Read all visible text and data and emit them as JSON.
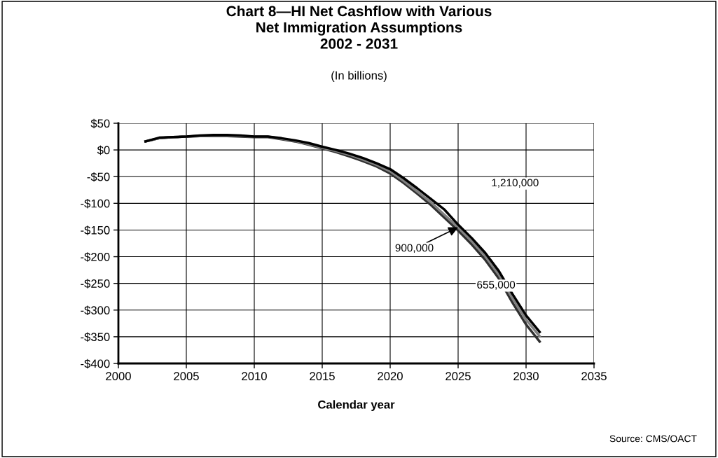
{
  "chart_data": {
    "type": "line",
    "title": "Chart 8—HI Net Cashflow with Various\nNet Immigration Assumptions\n2002 - 2031",
    "subtitle": "(In billions)",
    "xlabel": "Calendar year",
    "x": [
      2002,
      2003,
      2004,
      2005,
      2006,
      2007,
      2008,
      2009,
      2010,
      2011,
      2012,
      2013,
      2014,
      2015,
      2016,
      2017,
      2018,
      2019,
      2020,
      2021,
      2022,
      2023,
      2024,
      2025,
      2026,
      2027,
      2028,
      2029,
      2030,
      2031
    ],
    "series": [
      {
        "color": "#000000",
        "values": [
          16,
          23,
          24,
          25,
          27,
          28,
          28,
          27,
          25,
          25,
          22,
          18,
          13,
          6,
          0,
          -7,
          -15,
          -25,
          -36,
          -53,
          -72,
          -92,
          -112,
          -140,
          -165,
          -193,
          -227,
          -270,
          -310,
          -341
        ]
      },
      {
        "color": "#808080",
        "values": [
          16,
          22,
          24,
          25,
          26,
          27,
          27,
          26,
          25,
          25,
          21,
          17,
          11,
          4,
          -2,
          -9,
          -18,
          -28,
          -40,
          -58,
          -78,
          -98,
          -122,
          -145,
          -171,
          -199,
          -234,
          -278,
          -318,
          -349
        ]
      },
      {
        "color": "#303030",
        "values": [
          16,
          22,
          24,
          25,
          26,
          26,
          26,
          25,
          24,
          24,
          20,
          16,
          10,
          3,
          -4,
          -12,
          -21,
          -31,
          -44,
          -62,
          -82,
          -103,
          -127,
          -151,
          -177,
          -206,
          -241,
          -286,
          -327,
          -359
        ]
      }
    ],
    "annotations": [
      "1,210,000",
      {
        "text": "900,000",
        "x": 2025,
        "y": -145
      },
      "655,000",
      "Source: CMS/OACT"
    ],
    "xlim": [
      2000,
      2035
    ],
    "xticks": [
      2000,
      2005,
      2010,
      2015,
      2020,
      2025,
      2030,
      2035
    ],
    "ylim": [
      -400,
      50
    ],
    "yticks": [
      {
        "value": 50,
        "label": "$50"
      },
      {
        "value": 0,
        "label": "$0"
      },
      {
        "value": -50,
        "label": "-$50"
      },
      {
        "value": -100,
        "label": "-$100"
      },
      {
        "value": -150,
        "label": "-$150"
      },
      {
        "value": -200,
        "label": "-$200"
      },
      {
        "value": -250,
        "label": "-$250"
      },
      {
        "value": -300,
        "label": "-$300"
      },
      {
        "value": -350,
        "label": "-$350"
      },
      {
        "value": -400,
        "label": "-$400"
      }
    ],
    "grid": true,
    "legend": false,
    "marker": "none",
    "line_style": "solid"
  }
}
